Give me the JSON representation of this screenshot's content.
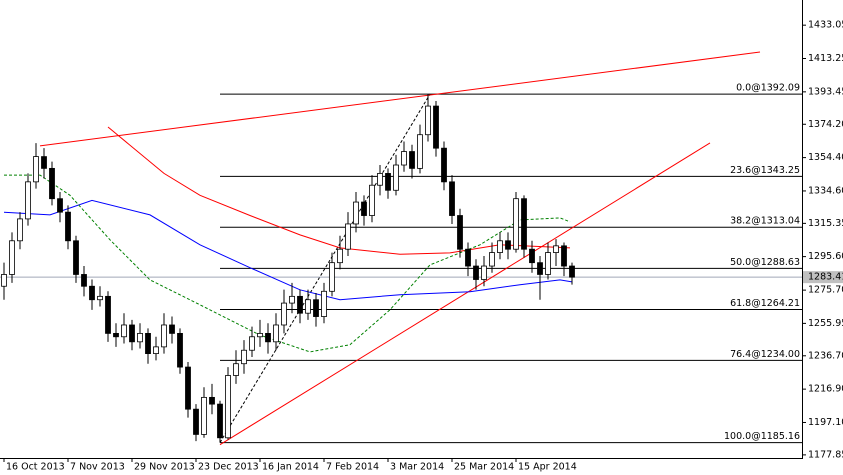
{
  "chart_data": {
    "type": "candlestick",
    "categories": [
      "16 Oct 2013",
      null,
      null,
      null,
      null,
      null,
      null,
      null,
      "7 Nov 2013",
      null,
      null,
      null,
      null,
      null,
      null,
      null,
      "29 Nov 2013",
      null,
      null,
      null,
      null,
      null,
      null,
      null,
      "23 Dec 2013",
      null,
      null,
      null,
      null,
      null,
      null,
      null,
      "16 Jan 2014",
      null,
      null,
      null,
      null,
      null,
      null,
      null,
      "7 Feb 2014",
      null,
      null,
      null,
      null,
      null,
      null,
      null,
      "3 Mar 2014",
      null,
      null,
      null,
      null,
      null,
      null,
      null,
      "25 Mar 2014",
      null,
      null,
      null,
      null,
      null,
      null,
      null,
      "15 Apr 2014",
      null,
      null,
      null,
      null,
      null,
      null,
      null
    ],
    "open": [
      1278,
      1285,
      1305,
      1318,
      1340,
      1355,
      1348,
      1330,
      1322,
      1305,
      1285,
      1278,
      1270,
      1272,
      1250,
      1248,
      1255,
      1245,
      1250,
      1238,
      1242,
      1255,
      1250,
      1230,
      1205,
      1190,
      1212,
      1208,
      1188,
      1225,
      1232,
      1240,
      1248,
      1250,
      1245,
      1255,
      1268,
      1272,
      1262,
      1270,
      1260,
      1275,
      1292,
      1300,
      1315,
      1328,
      1320,
      1338,
      1345,
      1335,
      1350,
      1358,
      1348,
      1368,
      1385,
      1360,
      1340,
      1320,
      1300,
      1290,
      1282,
      1290,
      1298,
      1305,
      1300,
      1330,
      1300,
      1292,
      1285,
      1298,
      1302,
      1290
    ],
    "high": [
      1292,
      1310,
      1322,
      1345,
      1363,
      1360,
      1352,
      1334,
      1326,
      1308,
      1290,
      1282,
      1278,
      1275,
      1256,
      1262,
      1258,
      1256,
      1253,
      1248,
      1262,
      1260,
      1253,
      1233,
      1208,
      1218,
      1220,
      1210,
      1230,
      1240,
      1246,
      1254,
      1258,
      1256,
      1262,
      1276,
      1280,
      1276,
      1276,
      1274,
      1280,
      1298,
      1308,
      1322,
      1334,
      1332,
      1344,
      1350,
      1348,
      1356,
      1364,
      1362,
      1374,
      1392.09,
      1388,
      1364,
      1344,
      1324,
      1304,
      1294,
      1296,
      1304,
      1310,
      1310,
      1334,
      1332,
      1305,
      1296,
      1304,
      1306,
      1304,
      1292
    ],
    "low": [
      1270,
      1280,
      1300,
      1314,
      1336,
      1342,
      1326,
      1316,
      1300,
      1280,
      1272,
      1264,
      1266,
      1245,
      1242,
      1244,
      1240,
      1241,
      1232,
      1234,
      1238,
      1244,
      1226,
      1200,
      1186,
      1188,
      1202,
      1185.16,
      1187,
      1220,
      1226,
      1236,
      1242,
      1238,
      1240,
      1250,
      1262,
      1256,
      1258,
      1254,
      1256,
      1272,
      1288,
      1296,
      1310,
      1314,
      1316,
      1332,
      1330,
      1332,
      1346,
      1342,
      1345,
      1364,
      1355,
      1335,
      1315,
      1295,
      1284,
      1276,
      1278,
      1286,
      1294,
      1294,
      1298,
      1295,
      1286,
      1270,
      1282,
      1290,
      1284,
      1279
    ],
    "close": [
      1285,
      1305,
      1318,
      1340,
      1355,
      1348,
      1330,
      1322,
      1305,
      1285,
      1278,
      1270,
      1272,
      1250,
      1248,
      1255,
      1245,
      1250,
      1238,
      1242,
      1255,
      1250,
      1230,
      1205,
      1190,
      1212,
      1208,
      1188,
      1225,
      1232,
      1240,
      1248,
      1250,
      1245,
      1255,
      1268,
      1272,
      1262,
      1270,
      1260,
      1275,
      1292,
      1300,
      1315,
      1328,
      1320,
      1338,
      1345,
      1335,
      1350,
      1358,
      1348,
      1368,
      1385,
      1360,
      1340,
      1320,
      1300,
      1290,
      1282,
      1290,
      1298,
      1305,
      1300,
      1330,
      1300,
      1292,
      1285,
      1298,
      1302,
      1290,
      1283.41
    ],
    "up_color": "#ffffff",
    "down_color": "#000000",
    "ylim": [
      1176,
      1448
    ],
    "yticks": [
      1433.05,
      1413.25,
      1393.45,
      {
        "value": 1374.2,
        "label": "1374.20"
      },
      {
        "value": 1354.4,
        "label": "1354.40"
      },
      {
        "value": 1334.6,
        "label": "1334.60"
      },
      1315.35,
      {
        "value": 1295.6,
        "label": "1295.60"
      },
      {
        "value": 1275.7,
        "label": "1275.70"
      },
      1255.95,
      {
        "value": 1236.7,
        "label": "1236.70"
      },
      {
        "value": 1216.9,
        "label": "1216.90"
      },
      {
        "value": 1197.1,
        "label": "1197.10"
      },
      1177.85
    ],
    "last_price": 1283.41,
    "moving_averages": [
      {
        "color": "#ff0000",
        "style": "solid",
        "x": [
          13,
          20,
          24.5,
          30.75,
          37,
          42,
          49.5,
          55.75,
          62,
          70.75
        ],
        "values": [
          1372.6,
          1345,
          1332,
          1320,
          1308.5,
          1300.8,
          1297,
          1297.8,
          1302.6,
          1300.8
        ]
      },
      {
        "color": "#0000ff",
        "style": "solid",
        "x": [
          0,
          5.75,
          11,
          18.25,
          24.5,
          30.75,
          37,
          42,
          49.5,
          58.25,
          64.5,
          69.5,
          71
        ],
        "values": [
          1322,
          1320.4,
          1329,
          1320.4,
          1302.6,
          1289,
          1275.9,
          1270,
          1273,
          1274.7,
          1278.9,
          1281.8,
          1280.6
        ]
      },
      {
        "color": "#008000",
        "style": "dashed",
        "x": [
          0,
          4.5,
          8.25,
          13.25,
          18.25,
          24.5,
          32,
          38.25,
          43.25,
          48.25,
          53.25,
          59.5,
          64.5,
          69.5,
          70.75
        ],
        "values": [
          1344,
          1344,
          1332,
          1305.6,
          1281.8,
          1267,
          1249,
          1239,
          1243.3,
          1264,
          1290.7,
          1302.6,
          1317.4,
          1318.6,
          1316.3
        ]
      }
    ],
    "trendlines": [
      {
        "color": "#ff0000",
        "x": [
          4.5,
          94.5
        ],
        "values": [
          1361.4,
          1417.1
        ]
      },
      {
        "color": "#ff0000",
        "x": [
          27,
          88.25
        ],
        "values": [
          1183.9,
          1363.1
        ]
      }
    ],
    "fibonacci": {
      "x": [
        27,
        53.25
      ],
      "values": [
        1185.16,
        1392.09
      ],
      "levels": [
        {
          "value": 1392.09,
          "label": "0.0@1392.09"
        },
        {
          "value": 1343.25,
          "label": "23.6@1343.25"
        },
        {
          "value": 1313.04,
          "label": "38.2@1313.04"
        },
        {
          "value": 1288.63,
          "label": "50.0@1288.63"
        },
        {
          "value": 1264.21,
          "label": "61.8@1264.21"
        },
        {
          "value": 1234,
          "label": "76.4@1234.00"
        },
        {
          "value": 1185.16,
          "label": "100.0@1185.16"
        }
      ]
    }
  }
}
